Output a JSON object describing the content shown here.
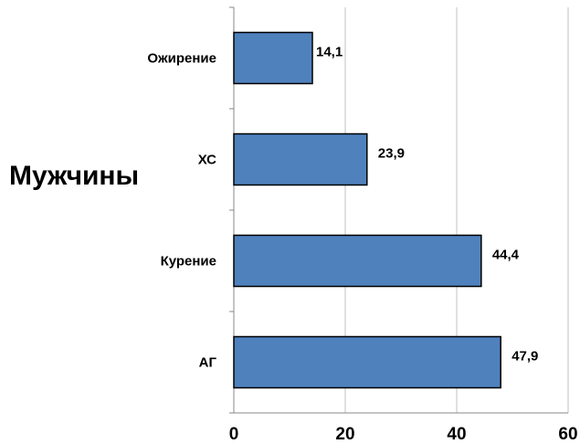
{
  "side_label": "Мужчины",
  "chart_data": {
    "type": "bar",
    "orientation": "horizontal",
    "categories": [
      "Ожирение",
      "ХС",
      "Курение",
      "АГ"
    ],
    "values": [
      14.1,
      23.9,
      44.4,
      47.9
    ],
    "value_labels": [
      "14,1",
      "23,9",
      "44,4",
      "47,9"
    ],
    "xlim": [
      0,
      60
    ],
    "x_ticks": [
      "0",
      "20",
      "40",
      "60"
    ],
    "grid": "vertical",
    "bar_color": "#4f81bd",
    "bar_stroke": "#000000",
    "grid_color": "#c0c0c0"
  }
}
